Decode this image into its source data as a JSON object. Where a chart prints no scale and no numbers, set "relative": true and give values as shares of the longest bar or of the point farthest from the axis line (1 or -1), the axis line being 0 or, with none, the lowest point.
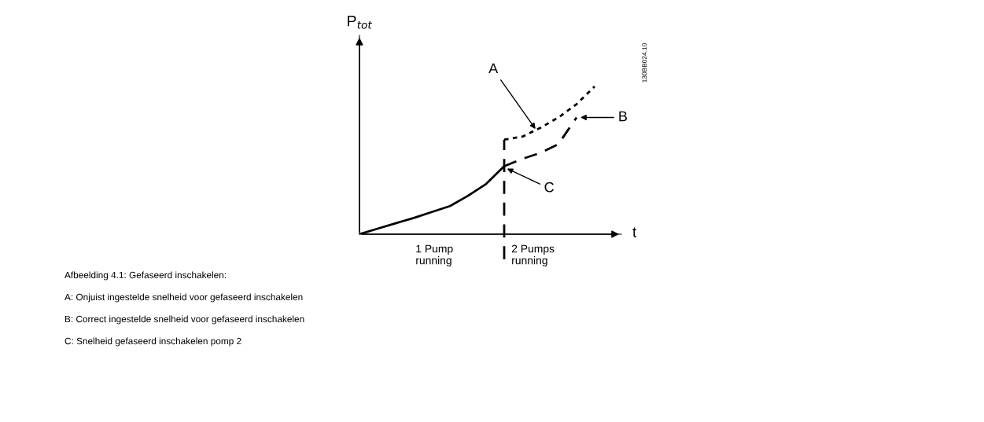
{
  "chart_data": {
    "type": "line",
    "relative": true,
    "ylabel": "P$_{tot}$",
    "xlabel": "t",
    "categories": [
      null,
      null,
      null,
      null,
      null,
      null,
      null,
      null,
      null,
      null,
      null,
      null,
      null,
      null
    ],
    "series": [
      {
        "color": "#000000",
        "line_style": "solid",
        "values": [
          0,
          0.037,
          0.074,
          0.11,
          0.15,
          0.19,
          0.26,
          0.34,
          0.46,
          null,
          null,
          null,
          null,
          null
        ]
      },
      {
        "color": "#000000",
        "line_style": "dashed",
        "values": [
          null,
          null,
          null,
          null,
          null,
          null,
          null,
          null,
          0.46,
          0.51,
          0.55,
          0.61,
          0.79,
          null
        ]
      },
      {
        "color": "#000000",
        "line_style": "dotted",
        "values": [
          null,
          null,
          null,
          null,
          null,
          null,
          null,
          null,
          0.64,
          0.66,
          0.72,
          0.79,
          0.88,
          1
        ]
      }
    ],
    "annotations": [
      "A",
      "B",
      "C",
      "1 Pump\nrunning",
      "2 Pumps\nrunning",
      "130BB024.10",
      "Afbeelding 4.1: Gefaseerd inschakelen:",
      "A: Onjuist ingestelde snelheid voor gefaseerd inschakelen",
      "B: Correct ingestelde snelheid voor gefaseerd inschakelen",
      "C: Snelheid gefaseerd inschakelen pomp 2"
    ]
  }
}
